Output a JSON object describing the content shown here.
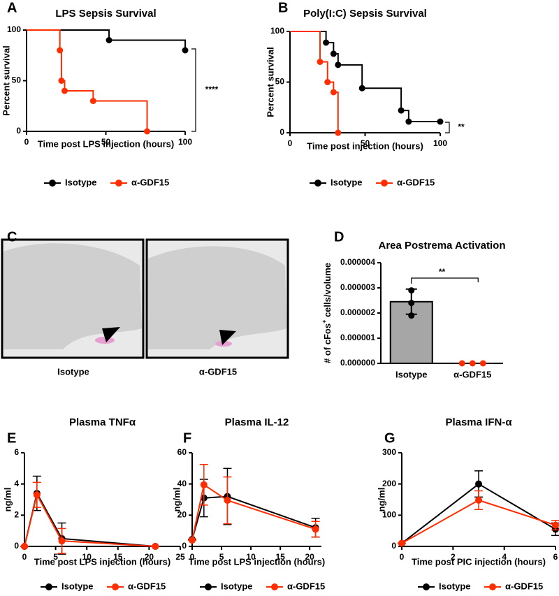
{
  "panel_labels": [
    "A",
    "B",
    "C",
    "D",
    "E",
    "F",
    "G"
  ],
  "images": {
    "labels": [
      "Isotype",
      "α-GDF15"
    ]
  },
  "chart_data": [
    {
      "type": "survival",
      "title": "LPS Sepsis Survival",
      "xlabel": "Time post LPS injection (hours)",
      "ylabel": "Percent survival",
      "xlim": [
        0,
        100
      ],
      "xticks": [
        0,
        50,
        100
      ],
      "ylim": [
        0,
        100
      ],
      "yticks": [
        0,
        50,
        100
      ],
      "annotation": "****",
      "series": [
        {
          "name": "Isotype",
          "color": "#000000",
          "x": [
            0,
            52,
            100
          ],
          "values": [
            100,
            90,
            80
          ]
        },
        {
          "name": "α-GDF15",
          "color": "#ff2d00",
          "x": [
            0,
            21,
            22,
            24,
            42,
            76
          ],
          "values": [
            100,
            80,
            50,
            40,
            30,
            0
          ]
        }
      ]
    },
    {
      "type": "survival",
      "title": "Poly(I:C) Sepsis Survival",
      "xlabel": "Time post injection (hours)",
      "ylabel": "Percent survival",
      "xlim": [
        0,
        100
      ],
      "xticks": [
        0,
        50,
        100
      ],
      "ylim": [
        0,
        100
      ],
      "yticks": [
        0,
        50,
        100
      ],
      "annotation": "**",
      "series": [
        {
          "name": "Isotype",
          "color": "#000000",
          "x": [
            0,
            24,
            29,
            32,
            48,
            74,
            79,
            100
          ],
          "values": [
            100,
            89,
            78,
            67,
            44,
            22,
            11,
            11
          ]
        },
        {
          "name": "α-GDF15",
          "color": "#ff2d00",
          "x": [
            0,
            20,
            25,
            29,
            32
          ],
          "values": [
            100,
            70,
            50,
            40,
            0
          ]
        }
      ]
    },
    {
      "type": "bar",
      "title": "Area Postrema Activation",
      "ylabel": [
        "# of cFos",
        "+",
        " cells/volume"
      ],
      "categories": [
        "Isotype",
        "α-GDF15"
      ],
      "values": [
        2.45e-06,
        0
      ],
      "errors": [
        5e-07,
        0
      ],
      "color": "#a6a6a6",
      "points": [
        [
          2.9e-06,
          2.4e-06,
          1.9e-06
        ],
        [
          0,
          0,
          0
        ]
      ],
      "annotation": "**",
      "ylim": [
        0,
        4e-06
      ],
      "yticks": [
        {
          "value": 0,
          "label": "0.000000"
        },
        {
          "value": 1e-06,
          "label": "0.000001"
        },
        {
          "value": 2e-06,
          "label": "0.000002"
        },
        {
          "value": 3e-06,
          "label": "0.000003"
        },
        {
          "value": 4e-06,
          "label": "0.000004"
        }
      ]
    },
    {
      "type": "line",
      "title": "Plasma TNFα",
      "xlabel": "Time post LPS injection (hours)",
      "ylabel": "ng/ml",
      "x": [
        0,
        2,
        6,
        21
      ],
      "xlim": [
        0,
        25
      ],
      "xticks": [
        0,
        5,
        10,
        15,
        20,
        25
      ],
      "ylim": [
        0,
        6
      ],
      "yticks": [
        0,
        2,
        4,
        6
      ],
      "series": [
        {
          "name": "Isotype",
          "color": "#000000",
          "values": [
            0,
            3.4,
            0.5,
            0
          ],
          "errors": [
            0,
            1.1,
            1.0,
            0
          ]
        },
        {
          "name": "α-GDF15",
          "color": "#ff2d00",
          "values": [
            0,
            3.3,
            0.35,
            0
          ],
          "errors": [
            0,
            0.8,
            0.8,
            0
          ]
        }
      ]
    },
    {
      "type": "line",
      "title": "Plasma IL-12",
      "xlabel": "Time post LPS injection (hours)",
      "ylabel": "ng/ml",
      "x": [
        0,
        2,
        6,
        21
      ],
      "xlim": [
        0,
        22
      ],
      "xticks": [
        0,
        5,
        10,
        15,
        20
      ],
      "ylim": [
        0,
        60
      ],
      "yticks": [
        0,
        20,
        40,
        60
      ],
      "series": [
        {
          "name": "Isotype",
          "color": "#000000",
          "values": [
            4.5,
            31,
            32,
            12
          ],
          "errors": [
            0,
            12,
            18,
            6
          ]
        },
        {
          "name": "α-GDF15",
          "color": "#ff2d00",
          "values": [
            4,
            39.5,
            29.5,
            11
          ],
          "errors": [
            0,
            13,
            15,
            5
          ]
        }
      ]
    },
    {
      "type": "line",
      "title": "Plasma IFN-α",
      "xlabel": "Time post PIC injection (hours)",
      "ylabel": "ng/ml",
      "x": [
        0,
        3,
        6
      ],
      "xlim": [
        0,
        6
      ],
      "xticks": [
        0,
        2,
        4,
        6
      ],
      "ylim": [
        0,
        300
      ],
      "yticks": [
        0,
        100,
        200,
        300
      ],
      "series": [
        {
          "name": "Isotype",
          "color": "#000000",
          "values": [
            10,
            200,
            55
          ],
          "errors": [
            0,
            42,
            20
          ]
        },
        {
          "name": "α-GDF15",
          "color": "#ff2d00",
          "values": [
            10,
            148,
            68
          ],
          "errors": [
            0,
            30,
            15
          ]
        }
      ]
    }
  ]
}
